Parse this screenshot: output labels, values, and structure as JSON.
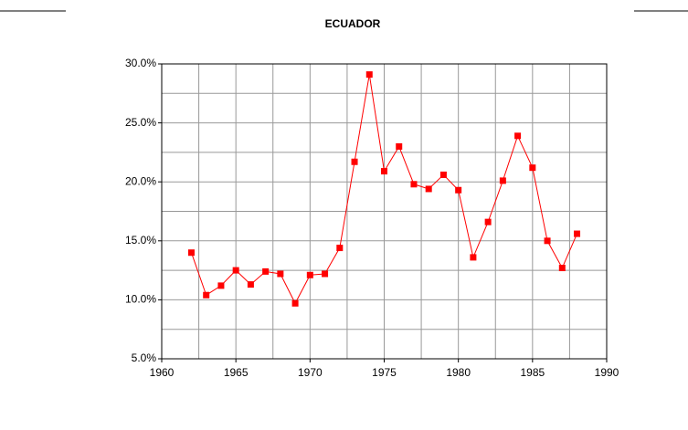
{
  "chart_data": {
    "type": "line",
    "title": "ECUADOR",
    "x": [
      1962,
      1963,
      1964,
      1965,
      1966,
      1967,
      1968,
      1969,
      1970,
      1971,
      1972,
      1973,
      1974,
      1975,
      1976,
      1977,
      1978,
      1979,
      1980,
      1981,
      1982,
      1983,
      1984,
      1985,
      1986,
      1987,
      1988
    ],
    "series": [
      {
        "color": "#ff0000",
        "values": [
          14.0,
          10.4,
          11.2,
          12.5,
          11.3,
          12.4,
          12.2,
          9.7,
          12.1,
          12.2,
          14.4,
          21.7,
          29.1,
          20.9,
          23.0,
          19.8,
          19.4,
          20.6,
          19.3,
          13.6,
          16.6,
          20.1,
          23.9,
          21.2,
          15.0,
          12.7,
          15.6
        ]
      }
    ],
    "xlim": [
      1960,
      1990
    ],
    "xticks": [
      1960,
      1965,
      1970,
      1975,
      1980,
      1985,
      1990
    ],
    "ylim": [
      5,
      30
    ],
    "yticks": [
      {
        "value": 5,
        "label": "5.0%"
      },
      {
        "value": 10,
        "label": "10.0%"
      },
      {
        "value": 15,
        "label": "15.0%"
      },
      {
        "value": 20,
        "label": "20.0%"
      },
      {
        "value": 25,
        "label": "25.0%"
      },
      {
        "value": 30,
        "label": "30.0%"
      }
    ],
    "grid": true,
    "minor_grid": true
  }
}
